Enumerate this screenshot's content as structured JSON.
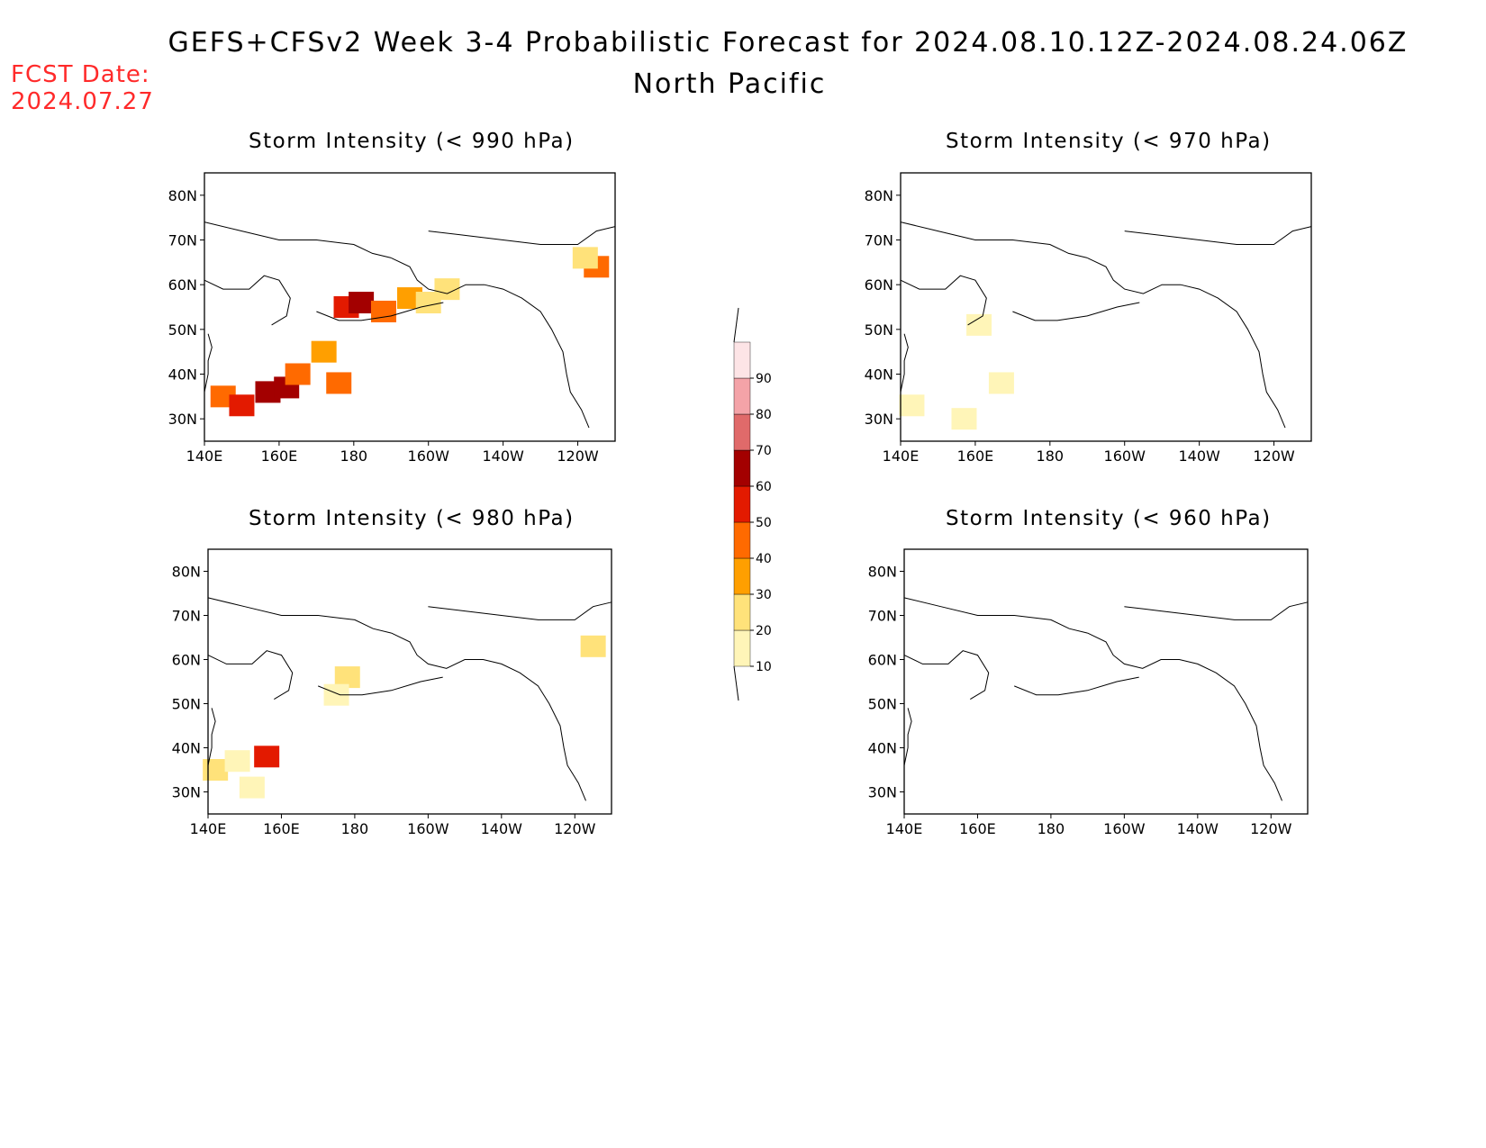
{
  "header": {
    "title": "GEFS+CFSv2 Week 3-4 Probabilistic Forecast for 2024.08.10.12Z-2024.08.24.06Z",
    "subtitle": "North Pacific",
    "fcst_label": "FCST Date:",
    "fcst_value": "2024.07.27"
  },
  "panels": [
    {
      "id": "p990",
      "title": "Storm Intensity (< 990 hPa)",
      "lat_ticks": [
        "80N",
        "70N",
        "60N",
        "50N",
        "40N",
        "30N"
      ],
      "lon_ticks": [
        "140E",
        "160E",
        "180",
        "160W",
        "140W",
        "120W"
      ],
      "probability_patches": [
        {
          "lon": 145,
          "lat": 35,
          "prob": 45
        },
        {
          "lon": 150,
          "lat": 33,
          "prob": 55
        },
        {
          "lon": 157,
          "lat": 36,
          "prob": 65
        },
        {
          "lon": 162,
          "lat": 37,
          "prob": 60
        },
        {
          "lon": 165,
          "lat": 40,
          "prob": 45
        },
        {
          "lon": 172,
          "lat": 45,
          "prob": 30
        },
        {
          "lon": 176,
          "lat": 38,
          "prob": 40
        },
        {
          "lon": 178,
          "lat": 55,
          "prob": 50
        },
        {
          "lon": 182,
          "lat": 56,
          "prob": 62
        },
        {
          "lon": 188,
          "lat": 54,
          "prob": 45
        },
        {
          "lon": 195,
          "lat": 57,
          "prob": 35
        },
        {
          "lon": 200,
          "lat": 56,
          "prob": 25
        },
        {
          "lon": 205,
          "lat": 59,
          "prob": 20
        },
        {
          "lon": 245,
          "lat": 64,
          "prob": 40
        },
        {
          "lon": 242,
          "lat": 66,
          "prob": 20
        }
      ]
    },
    {
      "id": "p970",
      "title": "Storm Intensity (< 970 hPa)",
      "lat_ticks": [
        "80N",
        "70N",
        "60N",
        "50N",
        "40N",
        "30N"
      ],
      "lon_ticks": [
        "140E",
        "160E",
        "180",
        "160W",
        "140W",
        "120W"
      ],
      "probability_patches": [
        {
          "lon": 161,
          "lat": 51,
          "prob": 15
        },
        {
          "lon": 167,
          "lat": 38,
          "prob": 15
        },
        {
          "lon": 143,
          "lat": 33,
          "prob": 12
        },
        {
          "lon": 157,
          "lat": 30,
          "prob": 12
        }
      ]
    },
    {
      "id": "p980",
      "title": "Storm Intensity (< 980 hPa)",
      "lat_ticks": [
        "80N",
        "70N",
        "60N",
        "50N",
        "40N",
        "30N"
      ],
      "lon_ticks": [
        "140E",
        "160E",
        "180",
        "160W",
        "140W",
        "120W"
      ],
      "probability_patches": [
        {
          "lon": 142,
          "lat": 35,
          "prob": 25
        },
        {
          "lon": 148,
          "lat": 37,
          "prob": 15
        },
        {
          "lon": 152,
          "lat": 31,
          "prob": 15
        },
        {
          "lon": 156,
          "lat": 38,
          "prob": 50
        },
        {
          "lon": 178,
          "lat": 56,
          "prob": 20
        },
        {
          "lon": 175,
          "lat": 52,
          "prob": 12
        },
        {
          "lon": 245,
          "lat": 63,
          "prob": 20
        }
      ]
    },
    {
      "id": "p960",
      "title": "Storm Intensity (< 960 hPa)",
      "lat_ticks": [
        "80N",
        "70N",
        "60N",
        "50N",
        "40N",
        "30N"
      ],
      "lon_ticks": [
        "140E",
        "160E",
        "180",
        "160W",
        "140W",
        "120W"
      ],
      "probability_patches": []
    }
  ],
  "colorbar": {
    "labels": [
      "10",
      "20",
      "30",
      "40",
      "50",
      "60",
      "70",
      "80",
      "90"
    ],
    "colors": [
      "#fff5b8",
      "#ffe27a",
      "#ff9f00",
      "#ff6a00",
      "#e31a00",
      "#a30000",
      "#e06a6a",
      "#f4a3a8",
      "#fde4e6"
    ]
  }
}
